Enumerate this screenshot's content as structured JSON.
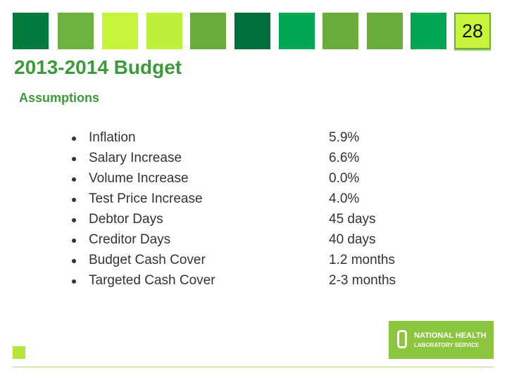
{
  "slide_number": "28",
  "title": "2013-2014 Budget",
  "subtitle": "Assumptions",
  "items": [
    {
      "label": "Inflation",
      "value": "5.9%"
    },
    {
      "label": "Salary Increase",
      "value": "6.6%"
    },
    {
      "label": "Volume Increase",
      "value": "0.0%"
    },
    {
      "label": "Test Price Increase",
      "value": "4.0%"
    },
    {
      "label": "Debtor Days",
      "value": "45 days"
    },
    {
      "label": "Creditor Days",
      "value": "40 days"
    },
    {
      "label": "Budget Cash Cover",
      "value": "1.2 months"
    },
    {
      "label": "Targeted Cash Cover",
      "value": "2-3 months"
    }
  ],
  "logo": {
    "line1": "NATIONAL HEALTH",
    "line2": "LABORATORY SERVICE"
  }
}
